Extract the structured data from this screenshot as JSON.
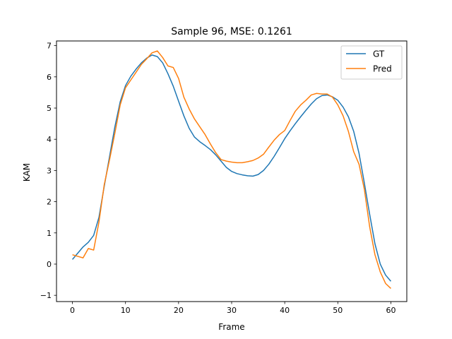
{
  "chart_data": {
    "type": "line",
    "title": "Sample 96, MSE: 0.1261",
    "xlabel": "Frame",
    "ylabel": "KAM",
    "xlim": [
      -3,
      63
    ],
    "ylim": [
      -1.2,
      7.15
    ],
    "xticks": [
      0,
      10,
      20,
      30,
      40,
      50,
      60
    ],
    "yticks": [
      -1,
      0,
      1,
      2,
      3,
      4,
      5,
      6,
      7
    ],
    "grid": false,
    "legend_position": "top-right",
    "x": [
      0,
      1,
      2,
      3,
      4,
      5,
      6,
      7,
      8,
      9,
      10,
      11,
      12,
      13,
      14,
      15,
      16,
      17,
      18,
      19,
      20,
      21,
      22,
      23,
      24,
      25,
      26,
      27,
      28,
      29,
      30,
      31,
      32,
      33,
      34,
      35,
      36,
      37,
      38,
      39,
      40,
      41,
      42,
      43,
      44,
      45,
      46,
      47,
      48,
      49,
      50,
      51,
      52,
      53,
      54,
      55,
      56,
      57,
      58,
      59,
      60
    ],
    "series": [
      {
        "name": "GT",
        "color": "#1f77b4",
        "values": [
          0.15,
          0.35,
          0.55,
          0.7,
          0.92,
          1.5,
          2.5,
          3.45,
          4.4,
          5.2,
          5.72,
          6.02,
          6.25,
          6.45,
          6.6,
          6.7,
          6.65,
          6.45,
          6.1,
          5.7,
          5.22,
          4.75,
          4.35,
          4.07,
          3.92,
          3.8,
          3.67,
          3.5,
          3.3,
          3.1,
          2.97,
          2.9,
          2.86,
          2.83,
          2.82,
          2.87,
          3.0,
          3.2,
          3.45,
          3.73,
          4.02,
          4.27,
          4.5,
          4.72,
          4.93,
          5.13,
          5.3,
          5.4,
          5.42,
          5.36,
          5.25,
          5.03,
          4.72,
          4.25,
          3.55,
          2.6,
          1.6,
          0.65,
          0.0,
          -0.35,
          -0.55
        ]
      },
      {
        "name": "Pred",
        "color": "#ff7f0e",
        "values": [
          0.3,
          0.25,
          0.2,
          0.5,
          0.45,
          1.35,
          2.55,
          3.35,
          4.2,
          5.1,
          5.65,
          5.9,
          6.15,
          6.4,
          6.58,
          6.77,
          6.83,
          6.62,
          6.35,
          6.3,
          5.95,
          5.35,
          4.97,
          4.65,
          4.4,
          4.15,
          3.85,
          3.57,
          3.35,
          3.3,
          3.27,
          3.25,
          3.25,
          3.28,
          3.32,
          3.4,
          3.52,
          3.75,
          3.97,
          4.15,
          4.28,
          4.6,
          4.9,
          5.1,
          5.25,
          5.42,
          5.47,
          5.45,
          5.45,
          5.35,
          5.1,
          4.75,
          4.25,
          3.6,
          3.2,
          2.4,
          1.2,
          0.3,
          -0.25,
          -0.62,
          -0.78
        ]
      }
    ]
  }
}
